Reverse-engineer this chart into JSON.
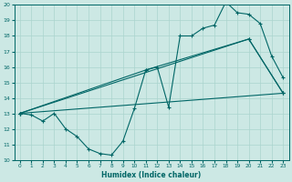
{
  "xlabel": "Humidex (Indice chaleur)",
  "background_color": "#cce8e4",
  "grid_color": "#aad4ce",
  "line_color": "#006666",
  "xlim": [
    -0.5,
    23.5
  ],
  "ylim": [
    10,
    20
  ],
  "xticks": [
    0,
    1,
    2,
    3,
    4,
    5,
    6,
    7,
    8,
    9,
    10,
    11,
    12,
    13,
    14,
    15,
    16,
    17,
    18,
    19,
    20,
    21,
    22,
    23
  ],
  "yticks": [
    10,
    11,
    12,
    13,
    14,
    15,
    16,
    17,
    18,
    19,
    20
  ],
  "lines": [
    {
      "x": [
        0,
        1,
        2,
        3,
        4,
        5,
        6,
        7,
        8,
        9,
        10,
        11,
        12,
        13,
        14,
        15,
        16,
        17,
        18,
        19,
        20,
        21,
        22,
        23
      ],
      "y": [
        13,
        12.9,
        12.5,
        13.0,
        12.0,
        11.5,
        10.7,
        10.4,
        10.3,
        11.2,
        13.3,
        15.8,
        16.0,
        13.4,
        18.0,
        18.0,
        18.5,
        18.7,
        20.2,
        19.5,
        19.4,
        18.8,
        16.7,
        15.3
      ]
    },
    {
      "x": [
        0,
        23
      ],
      "y": [
        13.0,
        14.3
      ]
    },
    {
      "x": [
        0,
        11,
        20,
        23
      ],
      "y": [
        13.0,
        15.8,
        17.8,
        14.3
      ]
    },
    {
      "x": [
        0,
        20,
        23
      ],
      "y": [
        13.0,
        17.8,
        14.3
      ]
    }
  ]
}
